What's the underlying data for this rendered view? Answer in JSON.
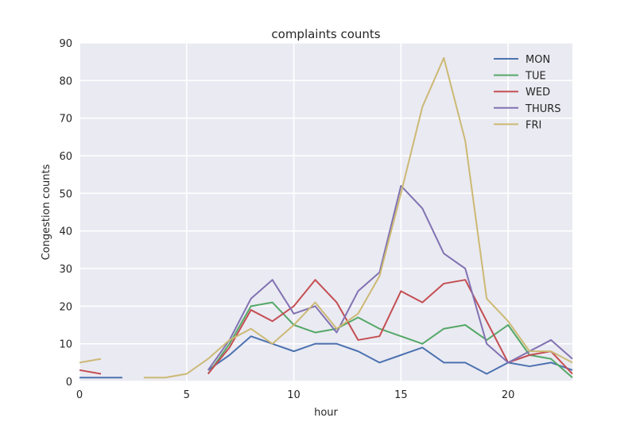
{
  "chart_data": {
    "type": "line",
    "title": "complaints counts",
    "xlabel": "hour",
    "ylabel": "Congestion counts",
    "xlim": [
      0,
      23
    ],
    "ylim": [
      0,
      90
    ],
    "xticks": [
      0,
      5,
      10,
      15,
      20
    ],
    "yticks": [
      0,
      10,
      20,
      30,
      40,
      50,
      60,
      70,
      80,
      90
    ],
    "grid": true,
    "legend_position": "top-right",
    "series": [
      {
        "name": "MON",
        "color": "#4c72b0",
        "x": [
          0,
          1,
          2,
          6,
          7,
          8,
          9,
          10,
          11,
          12,
          13,
          14,
          15,
          16,
          17,
          18,
          19,
          20,
          21,
          22,
          23
        ],
        "y": [
          1,
          1,
          1,
          3,
          7,
          12,
          10,
          8,
          10,
          10,
          8,
          5,
          7,
          9,
          5,
          5,
          2,
          5,
          4,
          5,
          3
        ]
      },
      {
        "name": "TUE",
        "color": "#55a868",
        "x": [
          6,
          7,
          8,
          9,
          10,
          11,
          12,
          13,
          14,
          15,
          16,
          17,
          18,
          19,
          20,
          21,
          22,
          23
        ],
        "y": [
          2,
          10,
          20,
          21,
          15,
          13,
          14,
          17,
          14,
          12,
          10,
          14,
          15,
          11,
          15,
          7,
          6,
          1
        ]
      },
      {
        "name": "WED",
        "color": "#c44e52",
        "x": [
          0,
          1,
          6,
          7,
          8,
          9,
          10,
          11,
          12,
          13,
          14,
          15,
          16,
          17,
          18,
          19,
          20,
          21,
          22,
          23
        ],
        "y": [
          3,
          2,
          2,
          9,
          19,
          16,
          20,
          27,
          21,
          11,
          12,
          24,
          21,
          26,
          27,
          16,
          5,
          7,
          8,
          2
        ]
      },
      {
        "name": "THURS",
        "color": "#8172b2",
        "x": [
          6,
          7,
          8,
          9,
          10,
          11,
          12,
          13,
          14,
          15,
          16,
          17,
          18,
          19,
          20,
          21,
          22,
          23
        ],
        "y": [
          3,
          11,
          22,
          27,
          18,
          20,
          13,
          24,
          29,
          52,
          46,
          34,
          30,
          10,
          5,
          8,
          11,
          6
        ]
      },
      {
        "name": "FRI",
        "color": "#ccb974",
        "x": [
          0,
          1,
          3,
          4,
          5,
          6,
          7,
          8,
          9,
          10,
          11,
          12,
          13,
          14,
          15,
          16,
          17,
          18,
          19,
          20,
          21,
          22,
          23
        ],
        "y": [
          5,
          6,
          1,
          1,
          2,
          6,
          11,
          14,
          10,
          15,
          21,
          14,
          18,
          28,
          50,
          73,
          86,
          64,
          22,
          16,
          8,
          8,
          5
        ]
      }
    ]
  }
}
